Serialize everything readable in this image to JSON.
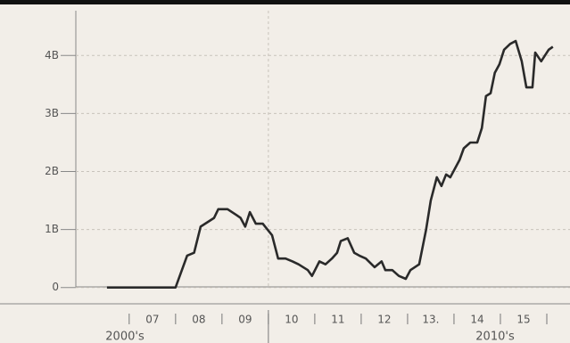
{
  "chart_data": {
    "type": "line",
    "x": [
      2006.52,
      2008.0,
      2008.25,
      2008.4,
      2008.54,
      2008.83,
      2008.92,
      2009.12,
      2009.31,
      2009.4,
      2009.5,
      2009.6,
      2009.73,
      2009.88,
      2010.08,
      2010.21,
      2010.37,
      2010.52,
      2010.65,
      2010.85,
      2010.94,
      2011.1,
      2011.23,
      2011.37,
      2011.48,
      2011.56,
      2011.71,
      2011.85,
      2011.96,
      2012.1,
      2012.29,
      2012.44,
      2012.52,
      2012.67,
      2012.81,
      2012.96,
      2013.06,
      2013.25,
      2013.4,
      2013.5,
      2013.63,
      2013.73,
      2013.83,
      2013.92,
      2014.02,
      2014.12,
      2014.21,
      2014.35,
      2014.5,
      2014.6,
      2014.69,
      2014.79,
      2014.88,
      2014.98,
      2015.08,
      2015.21,
      2015.33,
      2015.46,
      2015.56,
      2015.69,
      2015.75,
      2015.88,
      2016.04,
      2016.13
    ],
    "values": [
      0,
      0,
      0.55,
      0.6,
      1.05,
      1.2,
      1.35,
      1.35,
      1.25,
      1.2,
      1.05,
      1.3,
      1.1,
      1.1,
      0.9,
      0.5,
      0.5,
      0.45,
      0.4,
      0.3,
      0.2,
      0.45,
      0.4,
      0.5,
      0.6,
      0.8,
      0.85,
      0.6,
      0.55,
      0.5,
      0.35,
      0.45,
      0.3,
      0.3,
      0.2,
      0.15,
      0.3,
      0.4,
      1.0,
      1.5,
      1.9,
      1.75,
      1.95,
      1.9,
      2.05,
      2.2,
      2.4,
      2.5,
      2.5,
      2.75,
      3.3,
      3.35,
      3.7,
      3.85,
      4.1,
      4.2,
      4.25,
      3.9,
      3.45,
      3.45,
      4.05,
      3.9,
      4.1,
      4.15
    ],
    "color": "#2a2a2a",
    "xlim": [
      2005.85,
      2016.5
    ],
    "ylim": [
      -0.25,
      4.45
    ],
    "yticks": [
      0,
      {
        "value": 1,
        "label": "1B"
      },
      {
        "value": 2,
        "label": "2B"
      },
      {
        "value": 3,
        "label": "3B"
      },
      {
        "value": 4,
        "label": "4B"
      }
    ],
    "xticks": [
      2007,
      2008,
      2009,
      2010,
      2011,
      2012,
      2013,
      2014,
      2015,
      2016
    ],
    "year_labels": [
      {
        "value": 2007.5,
        "label": "07"
      },
      {
        "value": 2008.5,
        "label": "08"
      },
      {
        "value": 2009.5,
        "label": "09"
      },
      {
        "value": 2010.5,
        "label": "10"
      },
      {
        "value": 2011.5,
        "label": "11"
      },
      {
        "value": 2012.5,
        "label": "12"
      },
      {
        "value": 2013.5,
        "label": "13."
      },
      {
        "value": 2014.5,
        "label": "14"
      },
      {
        "value": 2015.5,
        "label": "15"
      }
    ],
    "xgrid": [
      2010
    ],
    "decade_labels": [
      "2000's",
      "2010's"
    ],
    "grid": true
  }
}
